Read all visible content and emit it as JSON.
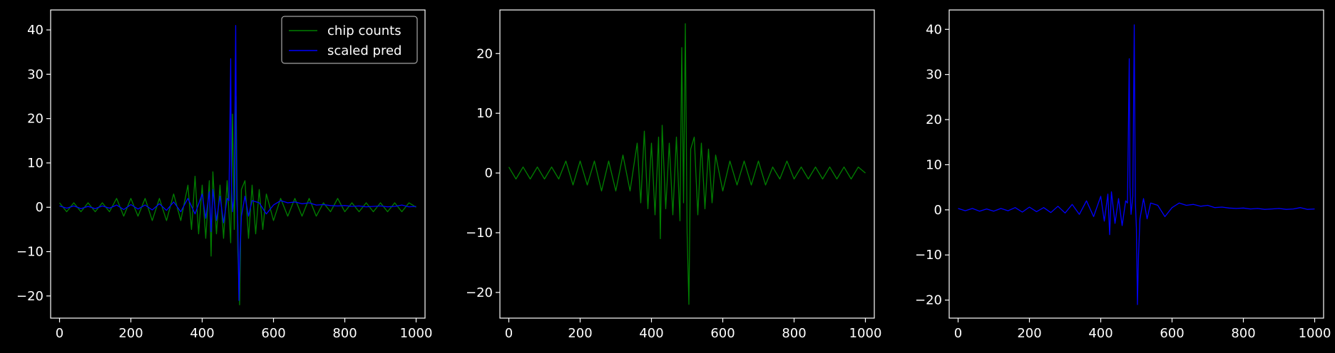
{
  "colors": {
    "background": "#000000",
    "axes": "#ffffff",
    "chip_counts": "#008000",
    "scaled_pred": "#0000ff"
  },
  "chart_data": [
    {
      "type": "line",
      "grid": false,
      "legend_placement": "top-right",
      "xlim": [
        -25,
        1025
      ],
      "ylim": [
        -25,
        44.5
      ],
      "xticks": [
        0,
        200,
        400,
        600,
        800,
        1000
      ],
      "yticks": [
        -20,
        -10,
        0,
        10,
        20,
        30,
        40
      ],
      "series": [
        {
          "name": "chip counts",
          "color": "#008000",
          "x": [
            0,
            20,
            40,
            60,
            80,
            100,
            120,
            140,
            160,
            180,
            200,
            220,
            240,
            260,
            280,
            300,
            320,
            340,
            360,
            370,
            380,
            390,
            400,
            410,
            420,
            425,
            430,
            440,
            450,
            460,
            470,
            480,
            485,
            490,
            495,
            500,
            505,
            510,
            520,
            530,
            540,
            550,
            560,
            570,
            580,
            600,
            620,
            640,
            660,
            680,
            700,
            720,
            740,
            760,
            780,
            800,
            820,
            840,
            860,
            880,
            900,
            920,
            940,
            960,
            980,
            1000
          ],
          "y": [
            1,
            -1,
            1,
            -1,
            1,
            -1,
            1,
            -1,
            2,
            -2,
            2,
            -2,
            2,
            -3,
            2,
            -3,
            3,
            -3,
            5,
            -5,
            7,
            -6,
            5,
            -7,
            6,
            -11,
            8,
            -6,
            5,
            -7,
            6,
            -8,
            21,
            -5,
            25,
            -10,
            -22,
            4,
            6,
            -7,
            5,
            -6,
            4,
            -5,
            3,
            -3,
            2,
            -2,
            2,
            -2,
            2,
            -2,
            1,
            -1,
            2,
            -1,
            1,
            -1,
            1,
            -1,
            1,
            -1,
            1,
            -1,
            1,
            0
          ]
        },
        {
          "name": "scaled pred",
          "color": "#0000ff",
          "x": [
            0,
            20,
            40,
            60,
            80,
            100,
            120,
            140,
            160,
            180,
            200,
            220,
            240,
            260,
            280,
            300,
            320,
            340,
            360,
            380,
            400,
            410,
            420,
            425,
            430,
            440,
            450,
            460,
            470,
            475,
            480,
            482,
            485,
            490,
            494,
            497,
            500,
            503,
            506,
            510,
            520,
            530,
            540,
            560,
            580,
            600,
            620,
            640,
            660,
            680,
            700,
            720,
            740,
            760,
            780,
            800,
            820,
            840,
            860,
            880,
            900,
            920,
            940,
            960,
            980,
            1000
          ],
          "y": [
            0.3,
            -0.2,
            0.3,
            -0.3,
            0.2,
            -0.3,
            0.3,
            -0.2,
            0.5,
            -0.5,
            0.6,
            -0.4,
            0.5,
            -0.6,
            0.8,
            -0.7,
            1.2,
            -1.0,
            2.0,
            -1.5,
            3.0,
            -2.5,
            3.5,
            -5.5,
            4.0,
            -3.0,
            2.5,
            -3.5,
            2.0,
            1.5,
            33.5,
            5.0,
            -1.0,
            3.0,
            41.0,
            2.0,
            -4.0,
            -21.0,
            -10.0,
            -2.0,
            2.5,
            -2.0,
            1.5,
            1.0,
            -1.5,
            0.5,
            1.5,
            1.0,
            1.2,
            0.8,
            1.0,
            0.5,
            0.6,
            0.4,
            0.3,
            0.4,
            0.2,
            0.3,
            0.1,
            0.2,
            0.3,
            0.1,
            0.2,
            0.5,
            0.1,
            0.2
          ]
        }
      ],
      "legend": [
        "chip counts",
        "scaled pred"
      ]
    },
    {
      "type": "line",
      "grid": false,
      "xlim": [
        -25,
        1025
      ],
      "ylim": [
        -24.3,
        27.3
      ],
      "xticks": [
        0,
        200,
        400,
        600,
        800,
        1000
      ],
      "yticks": [
        -20,
        -10,
        0,
        10,
        20
      ],
      "series": [
        {
          "color": "#008000",
          "x": [
            0,
            20,
            40,
            60,
            80,
            100,
            120,
            140,
            160,
            180,
            200,
            220,
            240,
            260,
            280,
            300,
            320,
            340,
            360,
            370,
            380,
            390,
            400,
            410,
            420,
            425,
            430,
            440,
            450,
            460,
            470,
            480,
            485,
            490,
            495,
            500,
            505,
            510,
            520,
            530,
            540,
            550,
            560,
            570,
            580,
            600,
            620,
            640,
            660,
            680,
            700,
            720,
            740,
            760,
            780,
            800,
            820,
            840,
            860,
            880,
            900,
            920,
            940,
            960,
            980,
            1000
          ],
          "y": [
            1,
            -1,
            1,
            -1,
            1,
            -1,
            1,
            -1,
            2,
            -2,
            2,
            -2,
            2,
            -3,
            2,
            -3,
            3,
            -3,
            5,
            -5,
            7,
            -6,
            5,
            -7,
            6,
            -11,
            8,
            -6,
            5,
            -7,
            6,
            -8,
            21,
            -5,
            25,
            -10,
            -22,
            4,
            6,
            -7,
            5,
            -6,
            4,
            -5,
            3,
            -3,
            2,
            -2,
            2,
            -2,
            2,
            -2,
            1,
            -1,
            2,
            -1,
            1,
            -1,
            1,
            -1,
            1,
            -1,
            1,
            -1,
            1,
            0
          ]
        }
      ]
    },
    {
      "type": "line",
      "grid": false,
      "xlim": [
        -25,
        1025
      ],
      "ylim": [
        -24.0,
        44.3
      ],
      "xticks": [
        0,
        200,
        400,
        600,
        800,
        1000
      ],
      "yticks": [
        -20,
        -10,
        0,
        10,
        20,
        30,
        40
      ],
      "series": [
        {
          "color": "#0000ff",
          "x": [
            0,
            20,
            40,
            60,
            80,
            100,
            120,
            140,
            160,
            180,
            200,
            220,
            240,
            260,
            280,
            300,
            320,
            340,
            360,
            380,
            400,
            410,
            420,
            425,
            430,
            440,
            450,
            460,
            470,
            475,
            480,
            482,
            485,
            490,
            494,
            497,
            500,
            503,
            506,
            510,
            520,
            530,
            540,
            560,
            580,
            600,
            620,
            640,
            660,
            680,
            700,
            720,
            740,
            760,
            780,
            800,
            820,
            840,
            860,
            880,
            900,
            920,
            940,
            960,
            980,
            1000
          ],
          "y": [
            0.3,
            -0.2,
            0.3,
            -0.3,
            0.2,
            -0.3,
            0.3,
            -0.2,
            0.5,
            -0.5,
            0.6,
            -0.4,
            0.5,
            -0.6,
            0.8,
            -0.7,
            1.2,
            -1.0,
            2.0,
            -1.5,
            3.0,
            -2.5,
            3.5,
            -5.5,
            4.0,
            -3.0,
            2.5,
            -3.5,
            2.0,
            1.5,
            33.5,
            5.0,
            -1.0,
            3.0,
            41.0,
            2.0,
            -4.0,
            -21.0,
            -10.0,
            -2.0,
            2.5,
            -2.0,
            1.5,
            1.0,
            -1.5,
            0.5,
            1.5,
            1.0,
            1.2,
            0.8,
            1.0,
            0.5,
            0.6,
            0.4,
            0.3,
            0.4,
            0.2,
            0.3,
            0.1,
            0.2,
            0.3,
            0.1,
            0.2,
            0.5,
            0.1,
            0.2
          ]
        }
      ]
    }
  ]
}
